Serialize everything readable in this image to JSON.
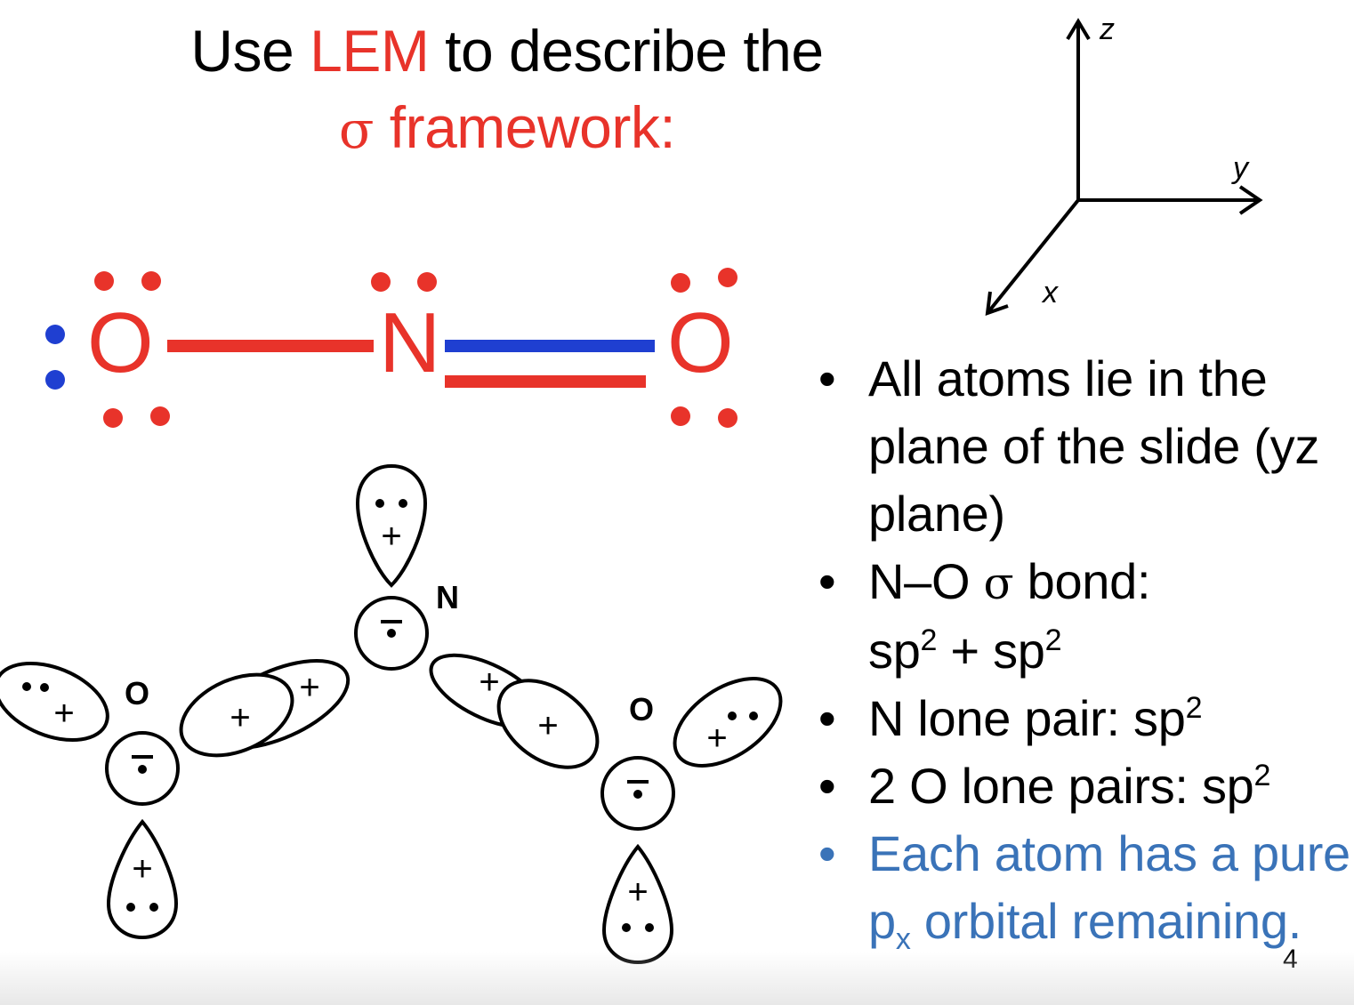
{
  "title": {
    "prefix": "Use ",
    "highlight": "LEM",
    "middle": " to describe the",
    "sigma": "σ",
    "suffix": " framework:"
  },
  "axes": {
    "z": "z",
    "y": "y",
    "x": "x"
  },
  "lewis": {
    "atoms": [
      "O",
      "N",
      "O"
    ],
    "colors": {
      "red": "#e8332a",
      "blue": "#1f3fd1"
    }
  },
  "orbital_diagram": {
    "atom_labels": {
      "left_o": "O",
      "center_n": "N",
      "right_o": "O"
    },
    "plus": "+"
  },
  "bullets": {
    "b1": "All atoms lie in the plane of the slide (yz plane)",
    "b2_line1_prefix": "N–O ",
    "b2_sigma": "σ",
    "b2_line1_suffix": " bond:",
    "b2_line2_a": "sp",
    "b2_sup": "2",
    "b2_line2_plus": " + sp",
    "b3_text": "N lone pair: sp",
    "b4_text": "2 O lone pairs: sp",
    "b5_text_a": "Each atom has a pure p",
    "b5_sub": "x",
    "b5_text_b": " orbital remaining."
  },
  "page_number": "4",
  "colors": {
    "accent_red": "#e8332a",
    "accent_blue": "#3a73b8"
  }
}
